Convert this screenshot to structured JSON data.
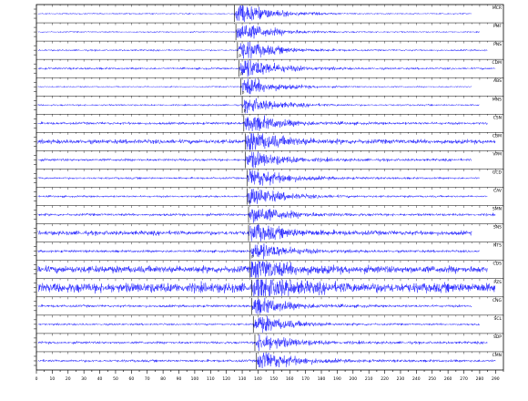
{
  "chart_data": {
    "type": "line",
    "title": "",
    "xlabel": "",
    "ylabel": "",
    "colors": {
      "trace": "#1a1aff",
      "axis": "#000000",
      "pick_line": "#000000"
    },
    "x_ticks": [
      0,
      10,
      20,
      30,
      40,
      50,
      60,
      70,
      80,
      90,
      100,
      110,
      120,
      130,
      140,
      150,
      160,
      170,
      180,
      190,
      200,
      210,
      220,
      230,
      240,
      250,
      260,
      270,
      280,
      290
    ],
    "xlim": [
      0,
      295
    ],
    "grid": false,
    "legend": "none",
    "stations": [
      {
        "name": "MCR",
        "onset": 125,
        "amplitude": 1.0,
        "noise": 0.08,
        "pick_label": ""
      },
      {
        "name": "PMF",
        "onset": 126,
        "amplitude": 0.9,
        "noise": 0.08,
        "pick_label": ""
      },
      {
        "name": "PNS",
        "onset": 127,
        "amplitude": 0.9,
        "noise": 0.1,
        "pick_label": "P"
      },
      {
        "name": "CDM",
        "onset": 128,
        "amplitude": 1.0,
        "noise": 0.12,
        "pick_label": "P"
      },
      {
        "name": "ABS",
        "onset": 129,
        "amplitude": 0.8,
        "noise": 0.08,
        "pick_label": "P"
      },
      {
        "name": "MNS",
        "onset": 130,
        "amplitude": 0.7,
        "noise": 0.1,
        "pick_label": "P"
      },
      {
        "name": "CSN",
        "onset": 131,
        "amplitude": 0.8,
        "noise": 0.15,
        "pick_label": ""
      },
      {
        "name": "CBM",
        "onset": 132,
        "amplitude": 0.9,
        "noise": 0.25,
        "pick_label": ""
      },
      {
        "name": "VPM",
        "onset": 132,
        "amplitude": 0.8,
        "noise": 0.15,
        "pick_label": ""
      },
      {
        "name": "GCD",
        "onset": 133,
        "amplitude": 0.9,
        "noise": 0.12,
        "pick_label": ""
      },
      {
        "name": "CAV",
        "onset": 133,
        "amplitude": 0.8,
        "noise": 0.12,
        "pick_label": "P"
      },
      {
        "name": "SMN",
        "onset": 134,
        "amplitude": 0.8,
        "noise": 0.15,
        "pick_label": ""
      },
      {
        "name": "SNS",
        "onset": 134,
        "amplitude": 0.8,
        "noise": 0.25,
        "pick_label": ""
      },
      {
        "name": "NTS",
        "onset": 135,
        "amplitude": 0.8,
        "noise": 0.15,
        "pick_label": "P"
      },
      {
        "name": "CDS",
        "onset": 135,
        "amplitude": 0.9,
        "noise": 0.4,
        "pick_label": ""
      },
      {
        "name": "PZS",
        "onset": 136,
        "amplitude": 1.0,
        "noise": 0.55,
        "pick_label": ""
      },
      {
        "name": "CNG",
        "onset": 136,
        "amplitude": 0.8,
        "noise": 0.15,
        "pick_label": ""
      },
      {
        "name": "SCL",
        "onset": 137,
        "amplitude": 0.8,
        "noise": 0.12,
        "pick_label": ""
      },
      {
        "name": "SDP",
        "onset": 138,
        "amplitude": 0.8,
        "noise": 0.15,
        "pick_label": ""
      },
      {
        "name": "CMN",
        "onset": 139,
        "amplitude": 0.9,
        "noise": 0.15,
        "pick_label": ""
      }
    ]
  }
}
